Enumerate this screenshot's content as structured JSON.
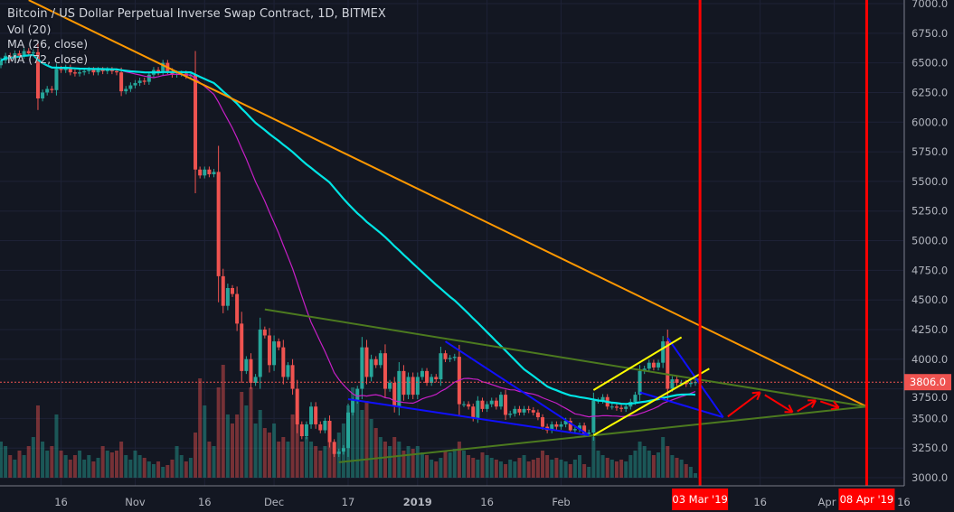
{
  "legend": {
    "title": "Bitcoin / US Dollar Perpetual Inverse Swap Contract, 1D, BITMEX",
    "vol": "Vol (20)",
    "ma1": "MA (26, close)",
    "ma2": "MA (72, close)"
  },
  "colors": {
    "background": "#131722",
    "grid": "#1e2236",
    "up": "#26a69a",
    "down": "#ef5350",
    "ma26": "#c71fc7",
    "ma72": "#00e5e5",
    "orange_trend": "#ff9800",
    "green_trend": "#4c7a1f",
    "blue_wedge": "#1010ff",
    "yellow_channel": "#ffff00",
    "red_marker": "#ff0000"
  },
  "chart_data": {
    "type": "candlestick",
    "symbol": "Bitcoin / US Dollar Perpetual Inverse Swap Contract",
    "interval": "1D",
    "exchange": "BITMEX",
    "start_date": "2018-10-03",
    "first_open": 6480,
    "closes": [
      6520,
      6560,
      6540,
      6580,
      6560,
      6600,
      6580,
      6590,
      6200,
      6250,
      6280,
      6270,
      6450,
      6440,
      6460,
      6420,
      6410,
      6420,
      6430,
      6440,
      6420,
      6440,
      6430,
      6440,
      6430,
      6420,
      6260,
      6280,
      6310,
      6330,
      6350,
      6340,
      6400,
      6440,
      6420,
      6500,
      6430,
      6400,
      6410,
      6410,
      6390,
      6400,
      5600,
      5550,
      5600,
      5560,
      5580,
      4700,
      4450,
      4600,
      4550,
      4300,
      3900,
      4000,
      3800,
      3850,
      4250,
      4200,
      3950,
      4150,
      4100,
      3850,
      3950,
      3750,
      3450,
      3350,
      3450,
      3600,
      3450,
      3400,
      3480,
      3300,
      3200,
      3220,
      3250,
      3550,
      3650,
      3750,
      4100,
      3850,
      4000,
      3950,
      4050,
      3750,
      3800,
      3600,
      3900,
      3700,
      3850,
      3700,
      3850,
      3900,
      3800,
      3850,
      3830,
      4050,
      4000,
      4010,
      4020,
      3620,
      3620,
      3600,
      3500,
      3650,
      3580,
      3620,
      3650,
      3600,
      3700,
      3530,
      3540,
      3580,
      3550,
      3580,
      3570,
      3550,
      3510,
      3430,
      3400,
      3450,
      3430,
      3450,
      3480,
      3400,
      3410,
      3440,
      3370,
      3380,
      3650,
      3650,
      3680,
      3600,
      3600,
      3590,
      3580,
      3600,
      3640,
      3700,
      3900,
      3920,
      3970,
      3930,
      3970,
      4150,
      3750,
      3830,
      3800,
      3800,
      3790,
      3800,
      3806
    ],
    "volume_relative": [
      40,
      35,
      25,
      20,
      30,
      25,
      35,
      45,
      80,
      40,
      30,
      35,
      70,
      30,
      25,
      20,
      25,
      30,
      20,
      25,
      18,
      22,
      35,
      30,
      28,
      30,
      40,
      25,
      20,
      30,
      25,
      22,
      18,
      15,
      18,
      12,
      14,
      20,
      35,
      25,
      18,
      22,
      50,
      110,
      80,
      40,
      35,
      100,
      125,
      70,
      60,
      70,
      95,
      80,
      100,
      60,
      75,
      55,
      50,
      60,
      40,
      45,
      40,
      70,
      75,
      40,
      45,
      40,
      35,
      30,
      35,
      55,
      40,
      50,
      60,
      80,
      100,
      90,
      75,
      85,
      65,
      55,
      45,
      40,
      35,
      45,
      40,
      30,
      35,
      32,
      35,
      28,
      25,
      20,
      18,
      22,
      30,
      28,
      32,
      40,
      30,
      25,
      22,
      20,
      28,
      25,
      22,
      20,
      18,
      15,
      20,
      18,
      22,
      25,
      18,
      20,
      22,
      30,
      25,
      20,
      22,
      20,
      18,
      15,
      20,
      25,
      15,
      12,
      45,
      30,
      25,
      22,
      20,
      18,
      20,
      18,
      25,
      30,
      40,
      35,
      30,
      25,
      28,
      45,
      35,
      25,
      22,
      20,
      15,
      12,
      5
    ],
    "moving_averages": [
      {
        "name": "MA (26, close)",
        "period": 26
      },
      {
        "name": "MA (72, close)",
        "period": 72
      }
    ],
    "last_price": "3806.0",
    "ylim": [
      3000,
      7000
    ],
    "y_ticks": [
      "7000.0",
      "6750.0",
      "6500.0",
      "6250.0",
      "6000.0",
      "5750.0",
      "5500.0",
      "5250.0",
      "5000.0",
      "4750.0",
      "4500.0",
      "4250.0",
      "4000.0",
      "3750.0",
      "3500.0",
      "3250.0",
      "3000.0"
    ],
    "x_ticks": [
      {
        "label": "16",
        "date": "2018-10-16"
      },
      {
        "label": "Nov",
        "date": "2018-11-01"
      },
      {
        "label": "16",
        "date": "2018-11-16"
      },
      {
        "label": "Dec",
        "date": "2018-12-01"
      },
      {
        "label": "17",
        "date": "2018-12-17"
      },
      {
        "label": "2019",
        "date": "2019-01-01",
        "bold": true
      },
      {
        "label": "16",
        "date": "2019-01-16"
      },
      {
        "label": "Feb",
        "date": "2019-02-01"
      },
      {
        "label": "16",
        "date": "2019-03-16"
      },
      {
        "label": "Apr",
        "date": "2019-04-01"
      },
      {
        "label": "16",
        "date": "2019-04-16"
      }
    ],
    "x_range": [
      "2018-10-03",
      "2019-04-17"
    ],
    "grid": true,
    "drawings": {
      "orange_trendline": [
        [
          "2018-10-09",
          7030
        ],
        [
          "2019-04-08",
          3600
        ]
      ],
      "green_upper": [
        [
          "2018-11-29",
          4420
        ],
        [
          "2019-04-08",
          3600
        ]
      ],
      "green_lower": [
        [
          "2018-12-15",
          3130
        ],
        [
          "2019-04-08",
          3600
        ]
      ],
      "blue_wedge_1": [
        [
          [
            "2018-12-17",
            3663
          ],
          [
            "2019-02-07",
            3358
          ]
        ],
        [
          [
            "2019-01-07",
            4150
          ],
          [
            "2019-02-07",
            3358
          ]
        ]
      ],
      "blue_wedge_2": [
        [
          [
            "2019-02-18",
            3720
          ],
          [
            "2019-03-08",
            3510
          ]
        ],
        [
          [
            "2019-02-24",
            4180
          ],
          [
            "2019-03-08",
            3510
          ]
        ]
      ],
      "yellow_channel": [
        [
          [
            "2019-02-08",
            3739
          ],
          [
            "2019-02-27",
            4185
          ]
        ],
        [
          [
            "2019-02-08",
            3358
          ],
          [
            "2019-03-05",
            3920
          ]
        ]
      ],
      "red_arrows": [
        [
          [
            "2019-03-09",
            3516
          ],
          [
            "2019-03-16",
            3721
          ]
        ],
        [
          [
            "2019-03-17",
            3698
          ],
          [
            "2019-03-23",
            3553
          ]
        ],
        [
          [
            "2019-03-24",
            3560
          ],
          [
            "2019-03-28",
            3652
          ]
        ],
        [
          [
            "2019-03-29",
            3644
          ],
          [
            "2019-04-02",
            3591
          ]
        ]
      ],
      "vertical_markers": [
        {
          "date": "2019-03-03",
          "label": "03 Mar '19"
        },
        {
          "date": "2019-04-08",
          "label": "08 Apr '19"
        }
      ]
    }
  }
}
